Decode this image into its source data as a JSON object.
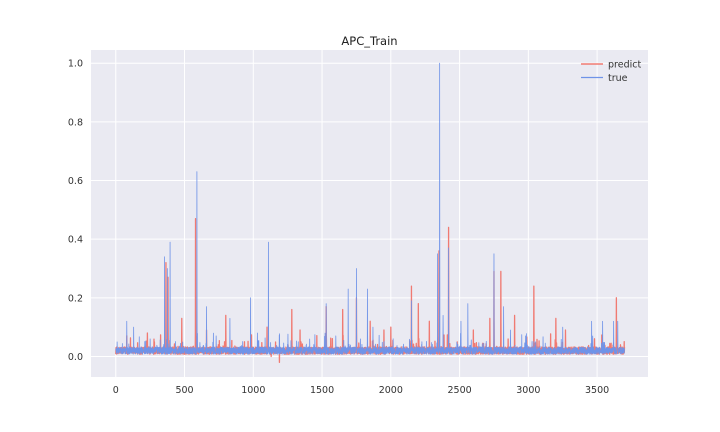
{
  "chart_data": {
    "type": "line",
    "title": "APC_Train",
    "xlabel": "",
    "ylabel": "",
    "xlim": [
      -180,
      3870
    ],
    "ylim": [
      -0.07,
      1.045
    ],
    "xticks": [
      0,
      500,
      1000,
      1500,
      2000,
      2500,
      3000,
      3500
    ],
    "yticks": [
      0.0,
      0.2,
      0.4,
      0.6,
      0.8,
      1.0
    ],
    "xtick_labels": [
      "0",
      "500",
      "1000",
      "1500",
      "2000",
      "2500",
      "3000",
      "3500"
    ],
    "ytick_labels": [
      "0.0",
      "0.2",
      "0.4",
      "0.6",
      "0.8",
      "1.0"
    ],
    "grid": true,
    "legend_position": "top-right",
    "n_points": 3700,
    "baseline_level": 0.02,
    "series": [
      {
        "name": "predict",
        "color": "#f07a72",
        "peaks": [
          [
            80,
            0.07
          ],
          [
            230,
            0.08
          ],
          [
            365,
            0.32
          ],
          [
            380,
            0.27
          ],
          [
            480,
            0.13
          ],
          [
            580,
            0.47
          ],
          [
            660,
            0.09
          ],
          [
            800,
            0.14
          ],
          [
            1100,
            0.1
          ],
          [
            1280,
            0.16
          ],
          [
            1340,
            0.09
          ],
          [
            1530,
            0.17
          ],
          [
            1650,
            0.16
          ],
          [
            1750,
            0.2
          ],
          [
            1850,
            0.12
          ],
          [
            1950,
            0.09
          ],
          [
            2000,
            0.1
          ],
          [
            2150,
            0.24
          ],
          [
            2200,
            0.18
          ],
          [
            2280,
            0.12
          ],
          [
            2350,
            0.36
          ],
          [
            2420,
            0.44
          ],
          [
            2600,
            0.09
          ],
          [
            2720,
            0.13
          ],
          [
            2750,
            0.29
          ],
          [
            2800,
            0.29
          ],
          [
            2900,
            0.14
          ],
          [
            3040,
            0.24
          ],
          [
            3200,
            0.13
          ],
          [
            3270,
            0.09
          ],
          [
            3640,
            0.2
          ]
        ],
        "troughs": [
          [
            1190,
            -0.02
          ],
          [
            1130,
            0.0
          ]
        ]
      },
      {
        "name": "true",
        "color": "#6f93e8",
        "peaks": [
          [
            80,
            0.12
          ],
          [
            130,
            0.1
          ],
          [
            250,
            0.06
          ],
          [
            355,
            0.34
          ],
          [
            375,
            0.3
          ],
          [
            395,
            0.39
          ],
          [
            590,
            0.63
          ],
          [
            660,
            0.17
          ],
          [
            730,
            0.07
          ],
          [
            830,
            0.13
          ],
          [
            980,
            0.2
          ],
          [
            1030,
            0.08
          ],
          [
            1110,
            0.39
          ],
          [
            1530,
            0.18
          ],
          [
            1600,
            0.07
          ],
          [
            1690,
            0.23
          ],
          [
            1750,
            0.3
          ],
          [
            1830,
            0.23
          ],
          [
            1870,
            0.1
          ],
          [
            2150,
            0.19
          ],
          [
            2340,
            0.35
          ],
          [
            2355,
            1.0
          ],
          [
            2380,
            0.14
          ],
          [
            2420,
            0.37
          ],
          [
            2510,
            0.12
          ],
          [
            2560,
            0.18
          ],
          [
            2750,
            0.35
          ],
          [
            2820,
            0.17
          ],
          [
            2870,
            0.09
          ],
          [
            2980,
            0.07
          ],
          [
            3250,
            0.1
          ],
          [
            3460,
            0.12
          ],
          [
            3540,
            0.12
          ],
          [
            3620,
            0.12
          ],
          [
            3650,
            0.12
          ]
        ]
      }
    ]
  }
}
